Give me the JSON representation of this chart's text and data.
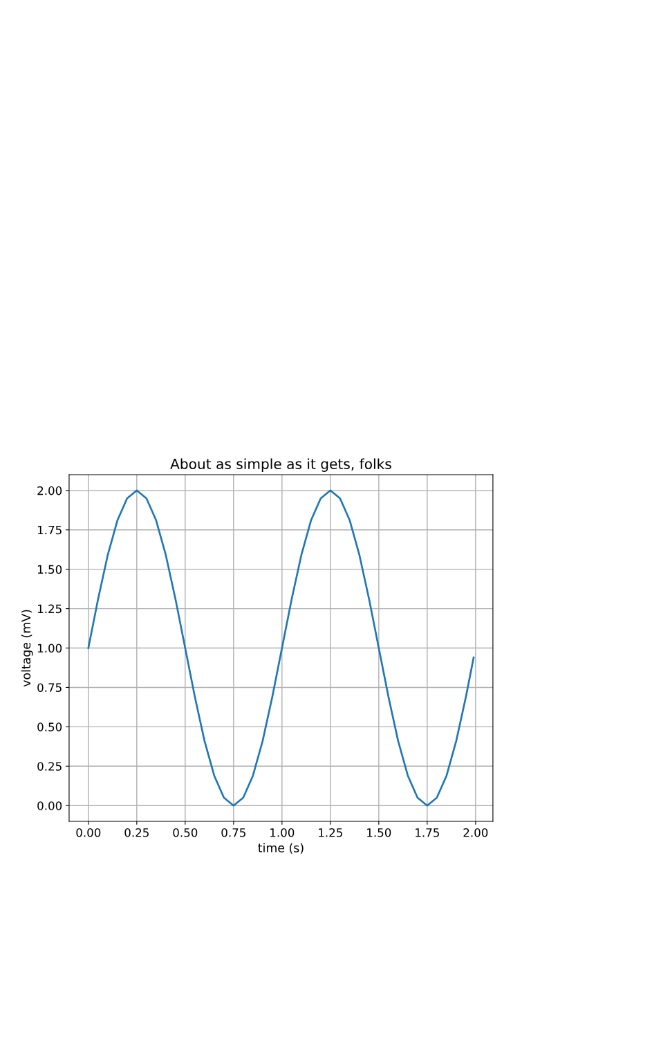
{
  "chart_data": {
    "type": "line",
    "title": "About as simple as it gets, folks",
    "xlabel": "time (s)",
    "ylabel": "voltage (mV)",
    "x": [
      0,
      0.05,
      0.1,
      0.15,
      0.2,
      0.25,
      0.3,
      0.35,
      0.4,
      0.45,
      0.5,
      0.55,
      0.6,
      0.65,
      0.7,
      0.75,
      0.8,
      0.85,
      0.9,
      0.95,
      1.0,
      1.05,
      1.1,
      1.15,
      1.2,
      1.25,
      1.3,
      1.35,
      1.4,
      1.45,
      1.5,
      1.55,
      1.6,
      1.65,
      1.7,
      1.75,
      1.8,
      1.85,
      1.9,
      1.95,
      1.99
    ],
    "series": [
      {
        "color": "#1f77b4",
        "values": [
          1.0,
          1.31,
          1.59,
          1.81,
          1.95,
          2.0,
          1.95,
          1.81,
          1.59,
          1.31,
          1.0,
          0.69,
          0.41,
          0.19,
          0.05,
          0.0,
          0.05,
          0.19,
          0.41,
          0.69,
          1.0,
          1.31,
          1.59,
          1.81,
          1.95,
          2.0,
          1.95,
          1.81,
          1.59,
          1.31,
          1.0,
          0.69,
          0.41,
          0.19,
          0.05,
          0.0,
          0.05,
          0.19,
          0.41,
          0.69,
          0.94
        ]
      }
    ],
    "xlim": [
      -0.0995,
      2.0895
    ],
    "ylim": [
      -0.1,
      2.1
    ],
    "xticks": [
      {
        "value": 0,
        "label": "0.00"
      },
      {
        "value": 0.25,
        "label": "0.25"
      },
      {
        "value": 0.5,
        "label": "0.50"
      },
      {
        "value": 0.75,
        "label": "0.75"
      },
      {
        "value": 1.0,
        "label": "1.00"
      },
      {
        "value": 1.25,
        "label": "1.25"
      },
      {
        "value": 1.5,
        "label": "1.50"
      },
      {
        "value": 1.75,
        "label": "1.75"
      },
      {
        "value": 2.0,
        "label": "2.00"
      }
    ],
    "yticks": [
      {
        "value": 0,
        "label": "0.00"
      },
      {
        "value": 0.25,
        "label": "0.25"
      },
      {
        "value": 0.5,
        "label": "0.50"
      },
      {
        "value": 0.75,
        "label": "0.75"
      },
      {
        "value": 1.0,
        "label": "1.00"
      },
      {
        "value": 1.25,
        "label": "1.25"
      },
      {
        "value": 1.5,
        "label": "1.50"
      },
      {
        "value": 1.75,
        "label": "1.75"
      },
      {
        "value": 2.0,
        "label": "2.00"
      }
    ],
    "grid": true,
    "marker": "none",
    "line_style": "solid"
  }
}
